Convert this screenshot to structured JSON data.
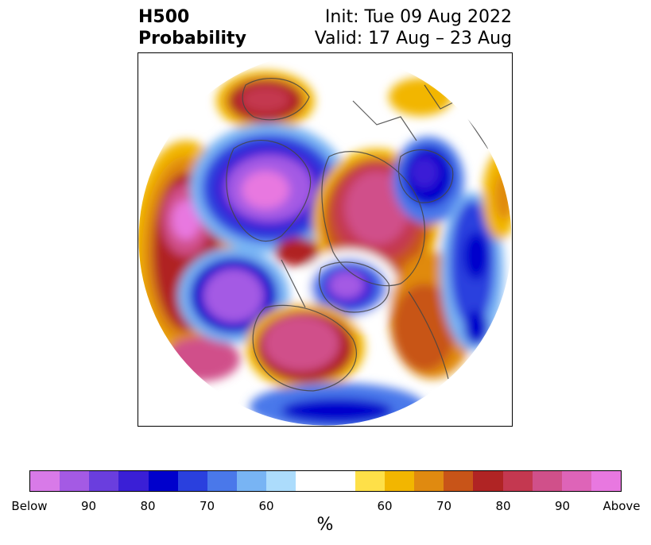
{
  "header": {
    "title_line1": "H500",
    "title_line2": "Probability",
    "init_text": "Init: Tue 09 Aug 2022",
    "valid_text": "Valid: 17 Aug – 23 Aug"
  },
  "colorbar": {
    "colors": [
      "#d87ae8",
      "#a45ae4",
      "#6a3ede",
      "#3a1fd6",
      "#0000cc",
      "#2a40de",
      "#4a78ea",
      "#78b4f4",
      "#acdcfc",
      "#ffffff",
      "#ffffff",
      "#fee048",
      "#f2b600",
      "#e08a10",
      "#c85418",
      "#b02424",
      "#c43850",
      "#d0508a",
      "#de64b8",
      "#e878e0"
    ],
    "tick_labels": [
      "Below",
      "90",
      "80",
      "70",
      "60",
      "60",
      "70",
      "80",
      "90",
      "Above"
    ],
    "unit_label": "%"
  }
}
